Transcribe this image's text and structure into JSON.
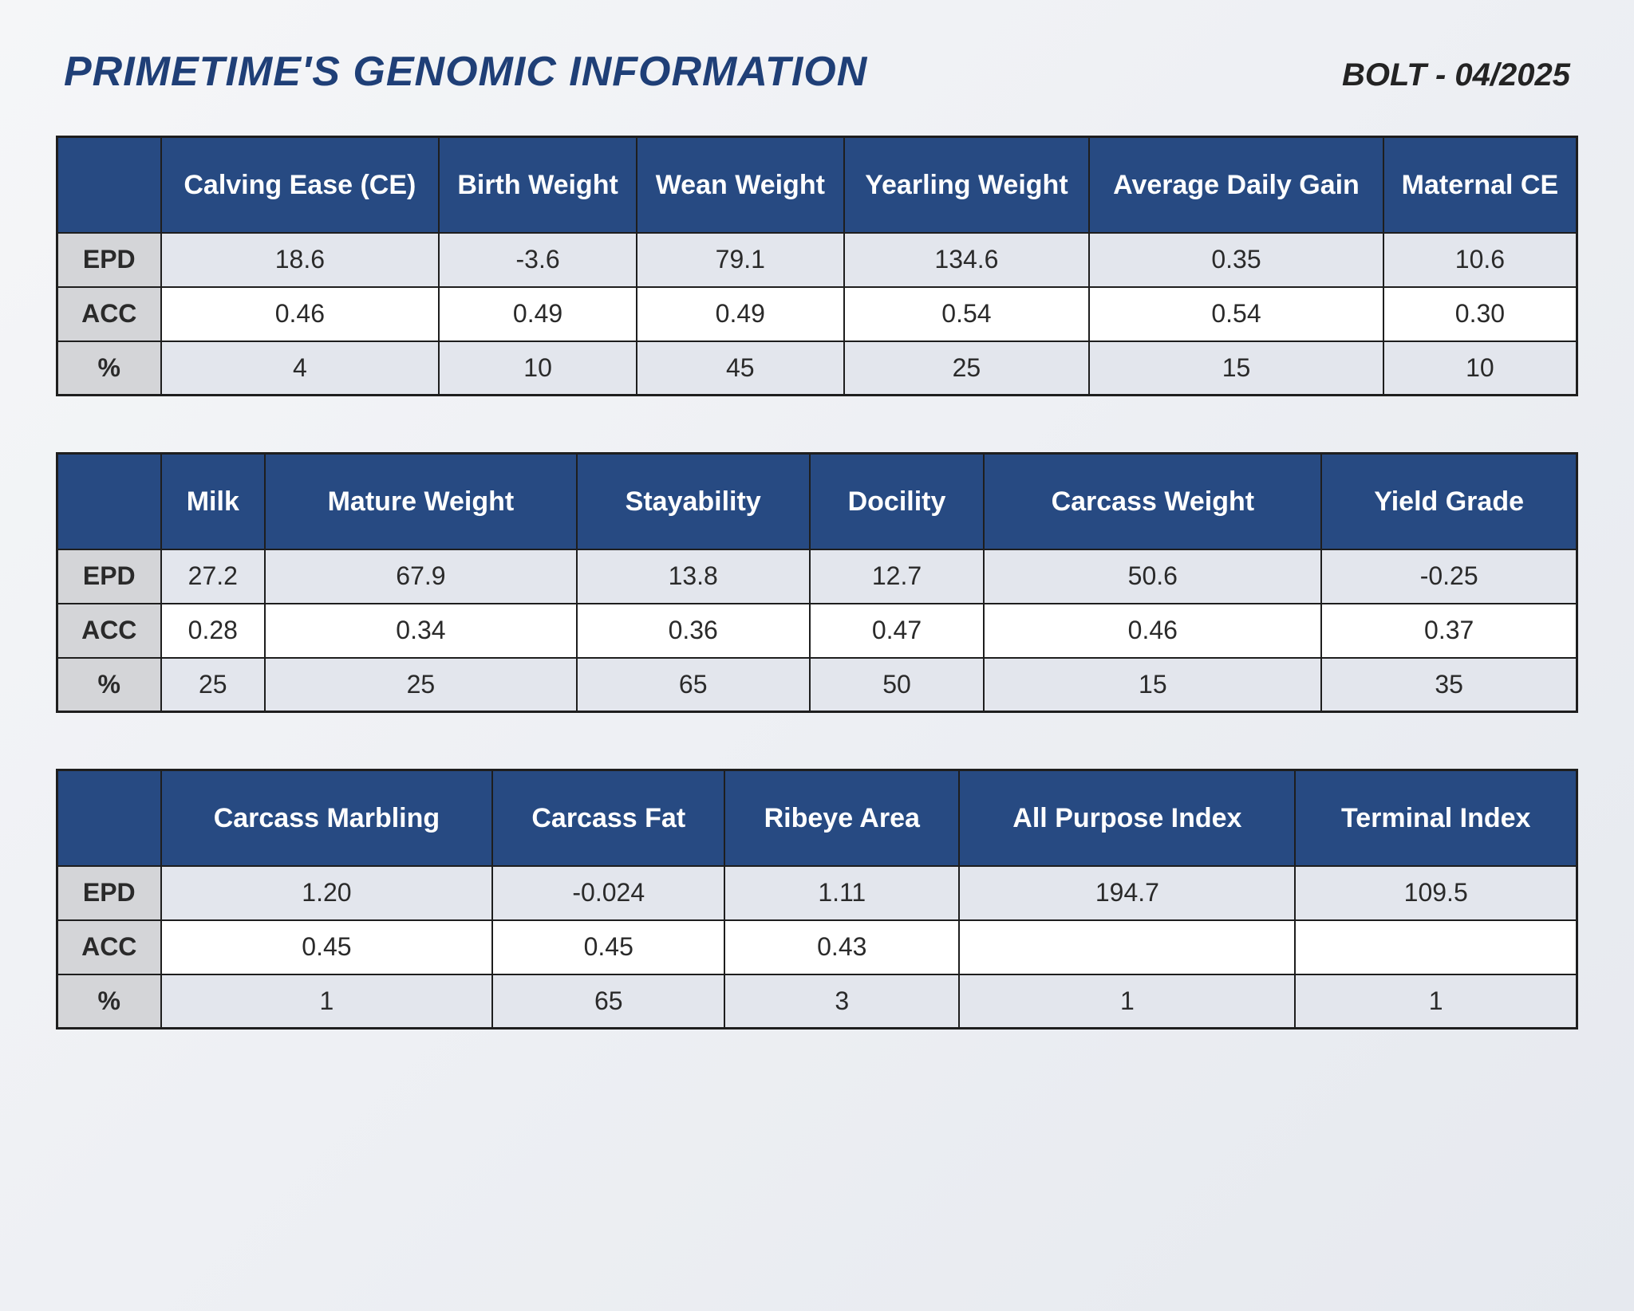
{
  "header": {
    "title": "PRIMETIME'S GENOMIC INFORMATION",
    "subtitle": "BOLT - 04/2025"
  },
  "colors": {
    "title_color": "#1f3f77",
    "header_bg": "#274a82",
    "header_fg": "#ffffff",
    "rowlabel_bg": "#d4d5d8",
    "alt_row_bg": "#e3e6ed",
    "plain_row_bg": "#ffffff",
    "border": "#1e1e1e",
    "page_bg_from": "#f5f6f8",
    "page_bg_to": "#e6e9ef"
  },
  "typography": {
    "title_fontsize": 52,
    "subtitle_fontsize": 40,
    "header_cell_fontsize": 34,
    "body_cell_fontsize": 32,
    "font_family": "Arial"
  },
  "row_labels": [
    "EPD",
    "ACC",
    "%"
  ],
  "tables": [
    {
      "columns": [
        "Calving Ease (CE)",
        "Birth Weight",
        "Wean Weight",
        "Yearling Weight",
        "Average Daily Gain",
        "Maternal CE"
      ],
      "epd": [
        "18.6",
        "-3.6",
        "79.1",
        "134.6",
        "0.35",
        "10.6"
      ],
      "acc": [
        "0.46",
        "0.49",
        "0.49",
        "0.54",
        "0.54",
        "0.30"
      ],
      "pct": [
        "4",
        "10",
        "45",
        "25",
        "15",
        "10"
      ]
    },
    {
      "columns": [
        "Milk",
        "Mature Weight",
        "Stayability",
        "Docility",
        "Carcass Weight",
        "Yield Grade"
      ],
      "epd": [
        "27.2",
        "67.9",
        "13.8",
        "12.7",
        "50.6",
        "-0.25"
      ],
      "acc": [
        "0.28",
        "0.34",
        "0.36",
        "0.47",
        "0.46",
        "0.37"
      ],
      "pct": [
        "25",
        "25",
        "65",
        "50",
        "15",
        "35"
      ]
    },
    {
      "columns": [
        "Carcass Marbling",
        "Carcass Fat",
        "Ribeye Area",
        "All Purpose Index",
        "Terminal Index"
      ],
      "epd": [
        "1.20",
        "-0.024",
        "1.11",
        "194.7",
        "109.5"
      ],
      "acc": [
        "0.45",
        "0.45",
        "0.43",
        "",
        ""
      ],
      "pct": [
        "1",
        "65",
        "3",
        "1",
        "1"
      ]
    }
  ]
}
